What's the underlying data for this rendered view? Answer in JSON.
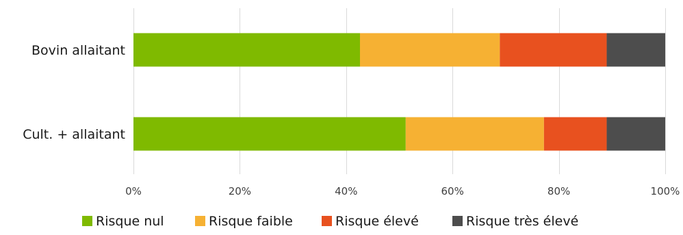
{
  "chart_data": {
    "type": "bar",
    "orientation": "horizontal",
    "stacked": true,
    "normalized_percent": true,
    "title": "",
    "xlabel": "",
    "ylabel": "",
    "categories": [
      "Bovin allaitant",
      "Cult. + allaitant"
    ],
    "xlim": [
      0,
      100
    ],
    "x_ticks": [
      "0%",
      "20%",
      "40%",
      "60%",
      "80%",
      "100%"
    ],
    "x_tick_values": [
      0,
      20,
      40,
      60,
      80,
      100
    ],
    "grid": true,
    "legend_position": "bottom",
    "series": [
      {
        "name": "Risque nul",
        "color": "#7fba00",
        "values": [
          42.6,
          51.2
        ]
      },
      {
        "name": "Risque faible",
        "color": "#f6b133",
        "values": [
          26.3,
          26.0
        ]
      },
      {
        "name": "Risque élevé",
        "color": "#e8511f",
        "values": [
          20.1,
          11.8
        ]
      },
      {
        "name": "Risque très élevé",
        "color": "#4d4d4d",
        "values": [
          11.0,
          11.0
        ]
      }
    ]
  }
}
